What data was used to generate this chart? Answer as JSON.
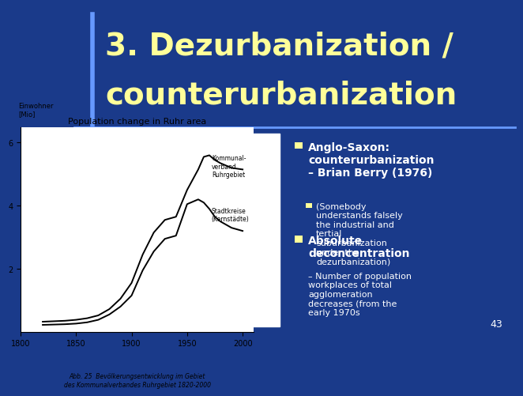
{
  "title_line1": "3. Dezurbanization /",
  "title_line2": "counterurbanization",
  "title_color": "#FFFF99",
  "title_fontsize": 28,
  "bg_color": "#1a3a8a",
  "chart_title": "Population change in Ruhr area",
  "chart_caption": "Abb. 25  Bevölkerungsentwicklung im Gebiet\ndes Kommunalverbandes Ruhrgebiet 1820-2000",
  "bullet_color": "#FFFF99",
  "text_color": "#FFFFFF",
  "bullet1_main": "Anglo-Saxon:\ncounterurbanization\n– Brian Berry (1976)",
  "bullet1_sub": "(Somebody\nunderstands falsely\nthe industrial and\ntertial\nsuburbanization\nunder the\ndezurbanization)",
  "bullet2_main": "Absolute\ndeconcentration",
  "bullet2_sub": "– Number of population\nworkplaces of total\nagglomeration\ndecreases (from the\nearly 1970s",
  "slide_number": "43",
  "divider_color": "#6699FF",
  "accent_line_color": "#6699FF"
}
